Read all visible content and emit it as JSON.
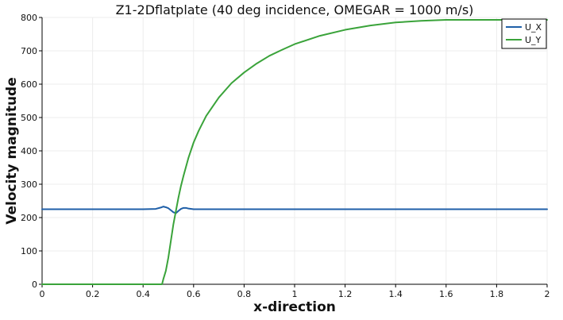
{
  "chart_data": {
    "type": "line",
    "title": "Z1-2Dflatplate (40 deg incidence, OMEGAR = 1000 m/s)",
    "xlabel": "x-direction",
    "ylabel": "Velocity magnitude",
    "xlim": [
      0,
      2
    ],
    "ylim": [
      0,
      800
    ],
    "xticks": [
      0,
      0.2,
      0.4,
      0.6,
      0.8,
      1,
      1.2,
      1.4,
      1.6,
      1.8,
      2
    ],
    "yticks": [
      0,
      100,
      200,
      300,
      400,
      500,
      600,
      700,
      800
    ],
    "grid": true,
    "legend_position": "top-right",
    "series": [
      {
        "name": "U_X",
        "color": "#1f5fa8",
        "x": [
          0,
          0.1,
          0.2,
          0.3,
          0.4,
          0.45,
          0.47,
          0.48,
          0.49,
          0.5,
          0.51,
          0.52,
          0.53,
          0.54,
          0.55,
          0.56,
          0.57,
          0.58,
          0.6,
          0.7,
          0.8,
          1.0,
          1.2,
          1.4,
          1.6,
          1.8,
          2.0
        ],
        "y": [
          225,
          225,
          225,
          225,
          225,
          226,
          230,
          233,
          231,
          228,
          222,
          216,
          213,
          220,
          226,
          229,
          229,
          227,
          225,
          225,
          225,
          225,
          225,
          225,
          225,
          225,
          225
        ]
      },
      {
        "name": "U_Y",
        "color": "#3aa33a",
        "x": [
          0,
          0.1,
          0.2,
          0.3,
          0.4,
          0.46,
          0.475,
          0.48,
          0.49,
          0.5,
          0.51,
          0.52,
          0.53,
          0.54,
          0.55,
          0.56,
          0.58,
          0.6,
          0.62,
          0.65,
          0.7,
          0.75,
          0.8,
          0.85,
          0.9,
          0.95,
          1.0,
          1.1,
          1.2,
          1.3,
          1.4,
          1.5,
          1.6,
          1.7,
          1.8,
          1.9,
          2.0
        ],
        "y": [
          0,
          0,
          0,
          0,
          0,
          0,
          0,
          15,
          40,
          80,
          130,
          180,
          220,
          260,
          295,
          325,
          380,
          425,
          460,
          505,
          560,
          603,
          635,
          662,
          685,
          703,
          720,
          745,
          763,
          776,
          785,
          790,
          793,
          793,
          793,
          793,
          793
        ]
      }
    ]
  }
}
